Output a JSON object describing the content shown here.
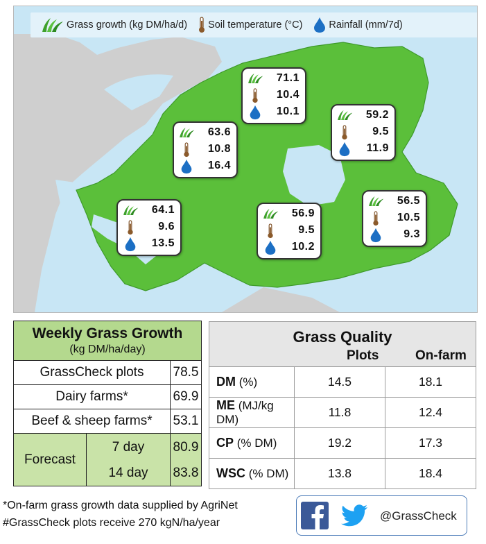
{
  "legend": {
    "grass_label": "Grass growth (kg DM/ha/d)",
    "soil_label": "Soil temperature (°C)",
    "rain_label": "Rainfall (mm/7d)"
  },
  "regions": [
    {
      "id": "north-central",
      "growth": "71.1",
      "soil_temp": "10.4",
      "rainfall": "10.1"
    },
    {
      "id": "north-east",
      "growth": "59.2",
      "soil_temp": "9.5",
      "rainfall": "11.9"
    },
    {
      "id": "west-central",
      "growth": "63.6",
      "soil_temp": "10.8",
      "rainfall": "16.4"
    },
    {
      "id": "south-west",
      "growth": "64.1",
      "soil_temp": "9.6",
      "rainfall": "13.5"
    },
    {
      "id": "south-central",
      "growth": "56.9",
      "soil_temp": "9.5",
      "rainfall": "10.2"
    },
    {
      "id": "south-east",
      "growth": "56.5",
      "soil_temp": "10.5",
      "rainfall": "9.3"
    }
  ],
  "growth_table": {
    "title": "Weekly Grass Growth",
    "subtitle": "(kg DM/ha/day)",
    "rows": [
      {
        "label": "GrassCheck plots",
        "value": "78.5"
      },
      {
        "label": "Dairy farms*",
        "value": "69.9"
      },
      {
        "label": "Beef & sheep farms*",
        "value": "53.1"
      }
    ],
    "forecast_label": "Forecast",
    "forecast": [
      {
        "label": "7 day",
        "value": "80.9"
      },
      {
        "label": "14 day",
        "value": "83.8"
      }
    ]
  },
  "quality_table": {
    "title": "Grass Quality",
    "col_plots": "Plots",
    "col_onfarm": "On-farm",
    "rows": [
      {
        "label": "DM",
        "unit": "(%)",
        "plots": "14.5",
        "onfarm": "18.1"
      },
      {
        "label": "ME",
        "unit": "(MJ/kg DM)",
        "plots": "11.8",
        "onfarm": "12.4"
      },
      {
        "label": "CP",
        "unit": "(% DM)",
        "plots": "19.2",
        "onfarm": "17.3"
      },
      {
        "label": "WSC",
        "unit": "(% DM)",
        "plots": "13.8",
        "onfarm": "18.4"
      }
    ]
  },
  "footnotes": {
    "note1": "*On-farm grass growth data supplied by AgriNet",
    "note2": "#GrassCheck plots receive 270 kgN/ha/year"
  },
  "social": {
    "handle": "@GrassCheck",
    "icons": [
      "facebook-icon",
      "twitter-icon"
    ]
  },
  "colors": {
    "land": "#5bbf3a",
    "land_other": "#cfcfcf",
    "water": "#c8e6f5",
    "header_green": "#b4d98e",
    "forecast_green": "#c9e3a8",
    "facebook": "#3b5998",
    "twitter": "#1da1f2",
    "rain_drop": "#1c6fc4"
  }
}
